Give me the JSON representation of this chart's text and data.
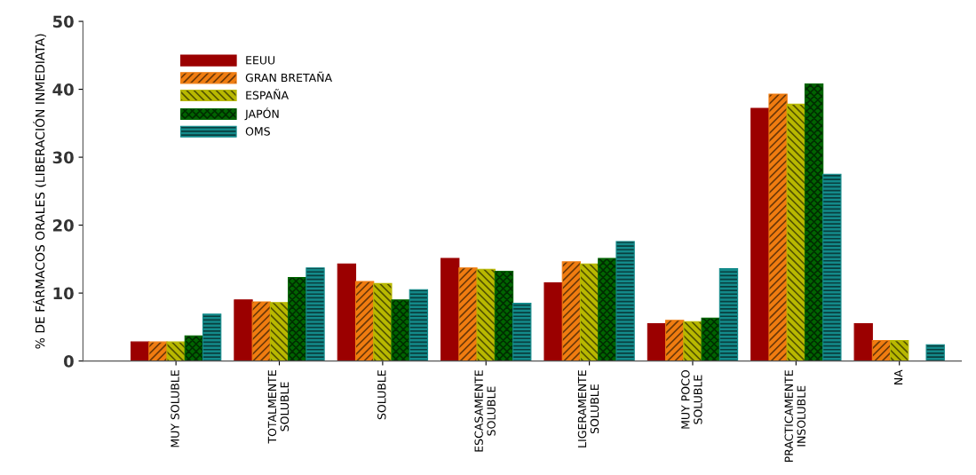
{
  "chart_data": {
    "type": "bar",
    "ylabel": "% DE FÁRMACOS ORALES (LIBERACIÓN INMEDIATA)",
    "categories": [
      "MUY SOLUBLE",
      "TOTALMENTE\nSOLUBLE",
      "SOLUBLE",
      "ESCASAMENTE\nSOLUBLE",
      "LIGERAMENTE\nSOLUBLE",
      "MUY POCO\nSOLUBLE",
      "PRACTICAMENTE\nINSOLUBLE",
      "NA"
    ],
    "series": [
      {
        "name": "EEUU",
        "color": "#9b0000",
        "values": [
          2.8,
          9.0,
          14.3,
          15.1,
          11.5,
          5.5,
          37.2,
          5.5
        ]
      },
      {
        "name": "GRAN BRETAÑA",
        "color": "#f07c10",
        "values": [
          2.8,
          8.7,
          11.7,
          13.7,
          14.6,
          6.0,
          39.3,
          3.0
        ]
      },
      {
        "name": "ESPAÑA",
        "color": "#b8b800",
        "values": [
          2.8,
          8.6,
          11.4,
          13.5,
          14.3,
          5.8,
          37.8,
          3.0
        ]
      },
      {
        "name": "JAPÓN",
        "color": "#006400",
        "values": [
          3.7,
          12.3,
          9.0,
          13.2,
          15.1,
          6.3,
          40.8,
          null
        ]
      },
      {
        "name": "OMS",
        "color": "#138a8a",
        "values": [
          6.9,
          13.7,
          10.5,
          8.5,
          17.6,
          13.6,
          27.5,
          2.4
        ]
      }
    ],
    "ylim": [
      0,
      50
    ],
    "yticks": [
      0,
      10,
      20,
      30,
      40,
      50
    ],
    "grid": false,
    "legend": "top left"
  }
}
